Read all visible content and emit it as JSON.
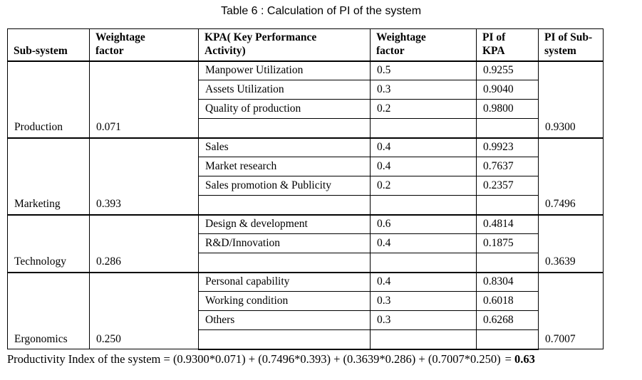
{
  "title": "Table 6 : Calculation of PI of the system",
  "table": {
    "headers": [
      "Sub-system",
      "Weightage\n factor",
      "KPA( Key Performance\nActivity)",
      "Weightage\n factor",
      "PI of\nKPA",
      "PI of Sub-\nsystem"
    ],
    "sections": [
      {
        "subsystem": "Production",
        "weightage": "0.071",
        "pi_subsystem": "0.9300",
        "kpas": [
          {
            "name": "Manpower Utilization",
            "weightage": "0.5",
            "pi": "0.9255"
          },
          {
            "name": "Assets Utilization",
            "weightage": "0.3",
            "pi": "0.9040"
          },
          {
            "name": "Quality of production",
            "weightage": "0.2",
            "pi": "0.9800"
          }
        ]
      },
      {
        "subsystem": "Marketing",
        "weightage": "0.393",
        "pi_subsystem": "0.7496",
        "kpas": [
          {
            "name": "Sales",
            "weightage": "0.4",
            "pi": "0.9923"
          },
          {
            "name": "Market research",
            "weightage": "0.4",
            "pi": "0.7637"
          },
          {
            "name": "Sales promotion & Publicity",
            "weightage": "0.2",
            "pi": "0.2357"
          }
        ]
      },
      {
        "subsystem": "Technology",
        "weightage": "0.286",
        "pi_subsystem": "0.3639",
        "kpas": [
          {
            "name": "Design & development",
            "weightage": "0.6",
            "pi": "0.4814"
          },
          {
            "name": "R&D/Innovation",
            "weightage": "0.4",
            "pi": "0.1875"
          }
        ]
      },
      {
        "subsystem": "Ergonomics",
        "weightage": "0.250",
        "pi_subsystem": "0.7007",
        "kpas": [
          {
            "name": "Personal capability",
            "weightage": "0.4",
            "pi": "0.8304"
          },
          {
            "name": "Working condition",
            "weightage": "0.3",
            "pi": "0.6018"
          },
          {
            "name": "Others",
            "weightage": "0.3",
            "pi": "0.6268"
          }
        ]
      }
    ]
  },
  "footer": {
    "formula": "Productivity Index of the system = (0.9300*0.071) + (0.7496*0.393) + (0.3639*0.286) + (0.7007*0.250)",
    "equals": "=",
    "result": "0.63"
  }
}
